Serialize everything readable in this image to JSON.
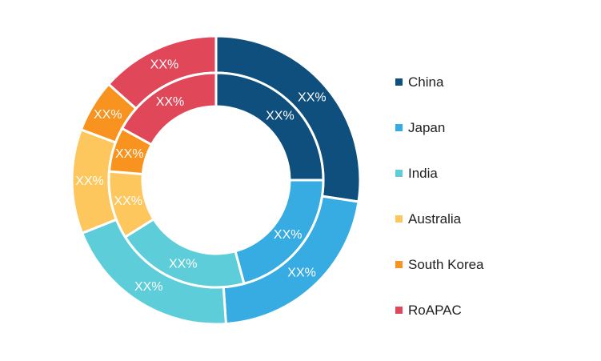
{
  "chart_data": {
    "type": "pie",
    "subtype": "double-ring donut",
    "categories": [
      "China",
      "Japan",
      "India",
      "Australia",
      "South Korea",
      "RoAPAC"
    ],
    "colors": [
      "#0f4f7d",
      "#36ace2",
      "#5dcdd9",
      "#fec75d",
      "#f7931e",
      "#e04758"
    ],
    "series": [
      {
        "ring": "outer",
        "values": [
          27.4,
          21.5,
          20.1,
          11.7,
          5.9,
          13.4
        ],
        "labels": [
          "XX%",
          "XX%",
          "XX%",
          "XX%",
          "XX%",
          "XX%"
        ]
      },
      {
        "ring": "inner",
        "values": [
          25.0,
          20.8,
          20.3,
          10.2,
          6.7,
          17.0
        ],
        "labels": [
          "XX%",
          "XX%",
          "XX%",
          "XX%",
          "XX%",
          "XX%"
        ]
      }
    ],
    "legend_position": "right"
  }
}
